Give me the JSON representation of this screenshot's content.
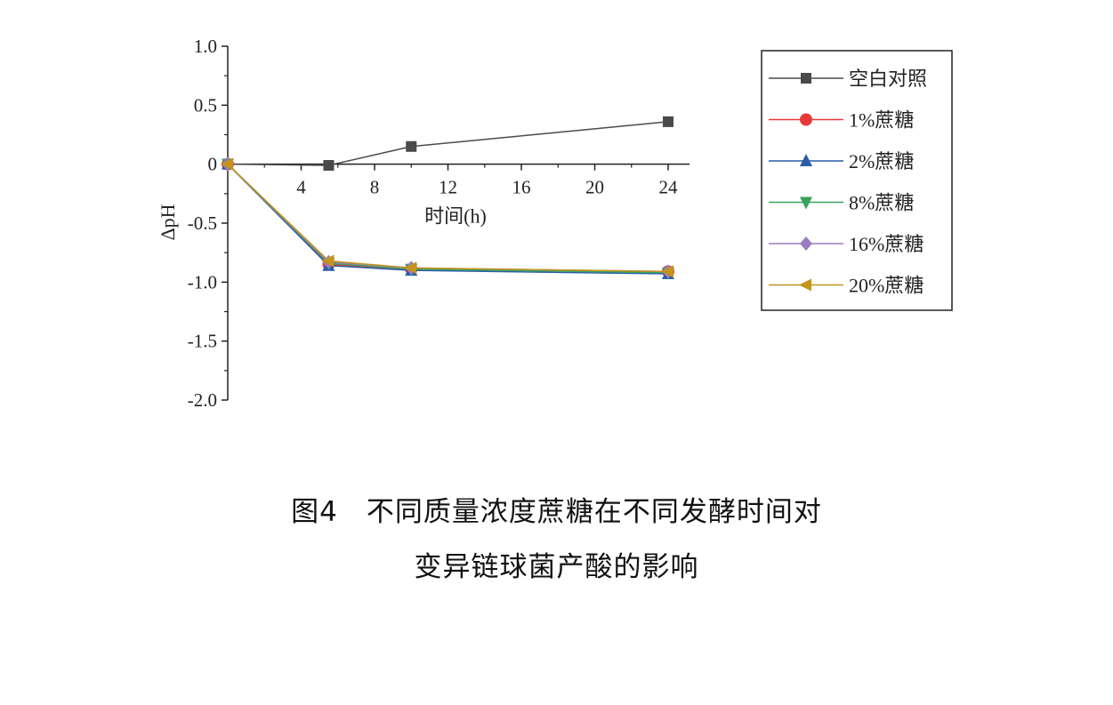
{
  "chart_data": {
    "type": "line",
    "xlabel": "时间(h)",
    "ylabel": "ΔpH",
    "x_tick_positions": [
      4,
      8,
      12,
      16,
      20,
      24
    ],
    "x_tick_labels": [
      "4",
      "8",
      "12",
      "16",
      "20",
      "24"
    ],
    "y_ticks": [
      1.0,
      0.5,
      0,
      -0.5,
      -1.0,
      -1.5,
      -2.0
    ],
    "y_tick_labels": [
      "1.0",
      "0.5",
      "0",
      "-0.5",
      "-1.0",
      "-1.5",
      "-2.0"
    ],
    "xlim": [
      0,
      25
    ],
    "ylim": [
      -2.0,
      1.0
    ],
    "x": [
      0,
      5.5,
      10,
      24
    ],
    "series": [
      {
        "name": "空白对照",
        "color": "#4a4a4a",
        "marker": "square",
        "values": [
          0,
          -0.01,
          0.15,
          0.36
        ]
      },
      {
        "name": "1%蔗糖",
        "color": "#e8393a",
        "marker": "circle",
        "values": [
          0,
          -0.85,
          -0.89,
          -0.91
        ]
      },
      {
        "name": "2%蔗糖",
        "color": "#2a5caa",
        "marker": "triangle-up",
        "values": [
          0,
          -0.86,
          -0.9,
          -0.93
        ]
      },
      {
        "name": "8%蔗糖",
        "color": "#3aa35c",
        "marker": "triangle-down",
        "values": [
          0,
          -0.84,
          -0.89,
          -0.92
        ]
      },
      {
        "name": "16%蔗糖",
        "color": "#9b7cc0",
        "marker": "diamond",
        "values": [
          0,
          -0.83,
          -0.88,
          -0.91
        ]
      },
      {
        "name": "20%蔗糖",
        "color": "#c4941a",
        "marker": "triangle-left",
        "values": [
          0,
          -0.82,
          -0.88,
          -0.91
        ]
      }
    ],
    "legend_position": "right",
    "grid": false
  },
  "caption": {
    "line1": "图4　不同质量浓度蔗糖在不同发酵时间对",
    "line2": "变异链球菌产酸的影响"
  }
}
